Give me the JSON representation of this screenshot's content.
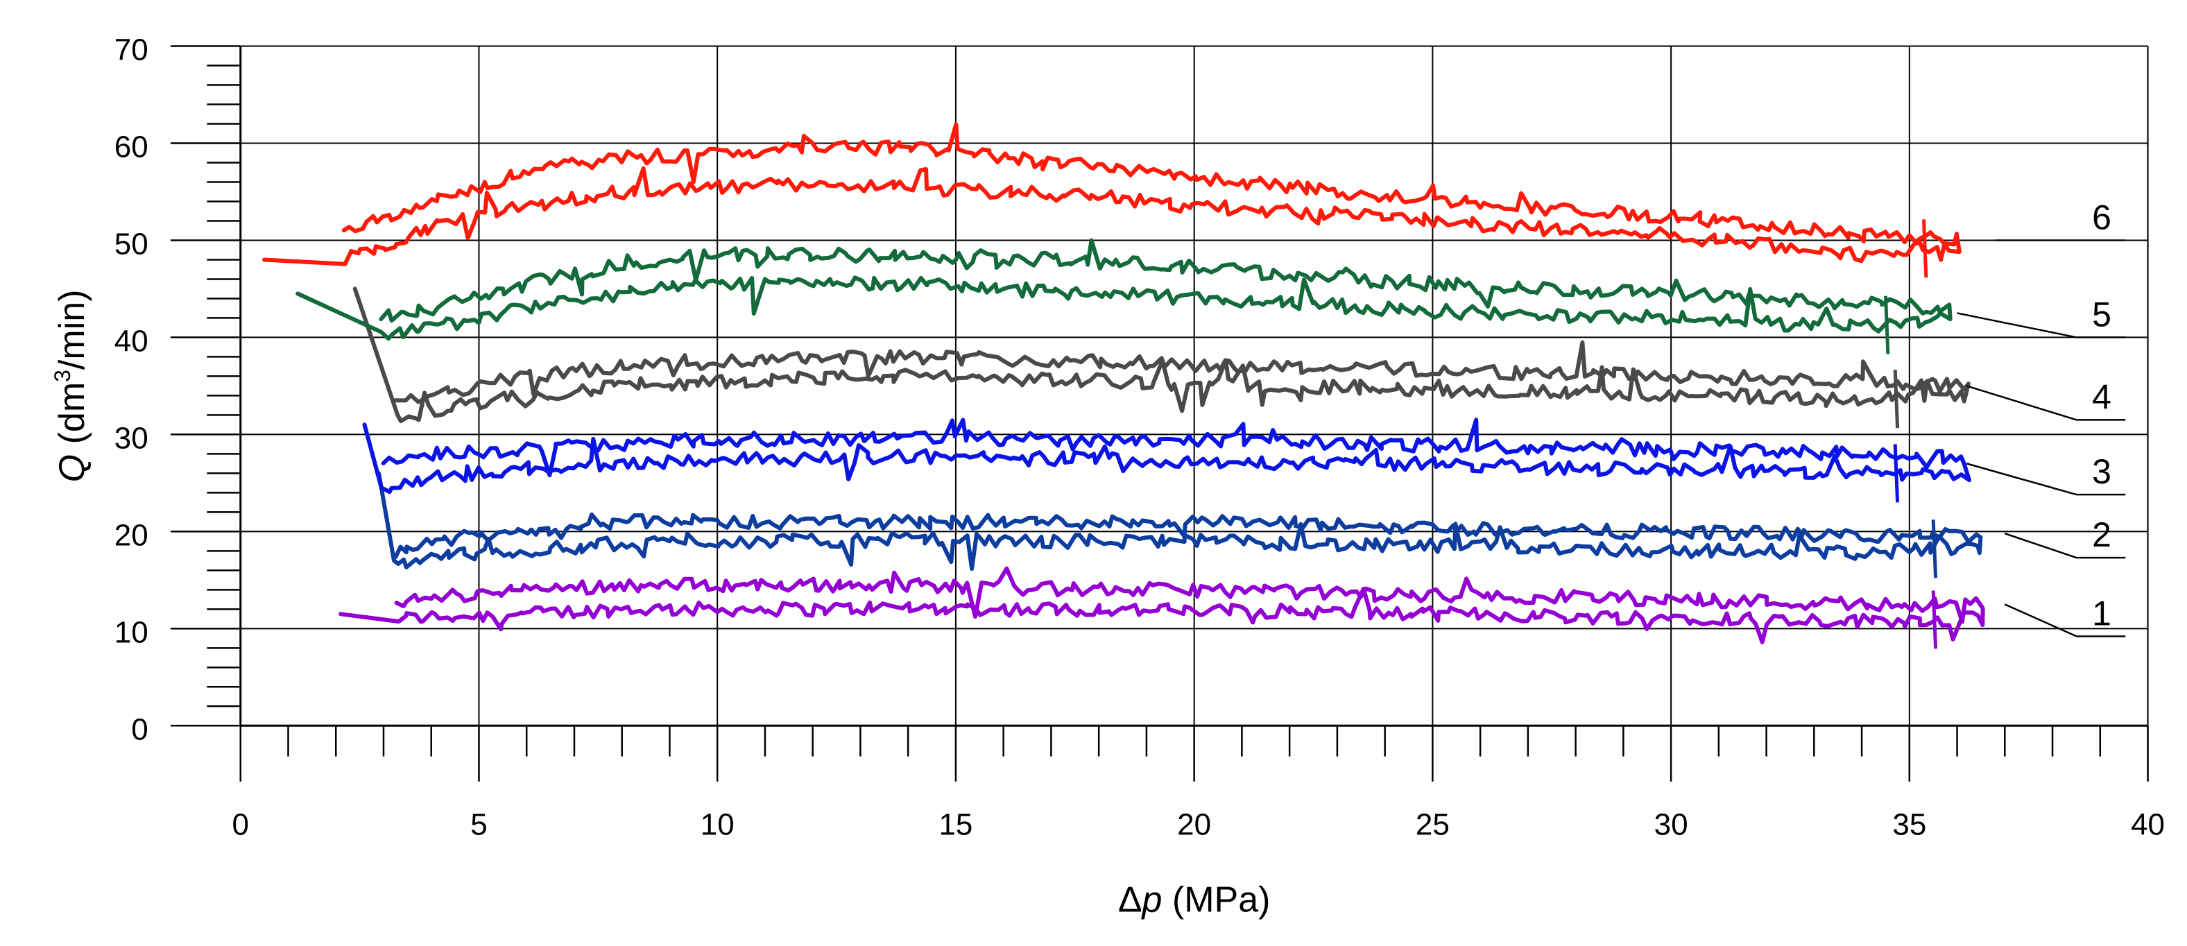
{
  "chart_data": {
    "type": "line",
    "title": "",
    "xlabel": {
      "symbol": "Δ",
      "italic": "p",
      "unit": " (MPa)"
    },
    "ylabel": {
      "italic": "Q",
      "pre": " (dm",
      "sup": "3",
      "post": "/min)"
    },
    "xlim": [
      0,
      40
    ],
    "ylim": [
      0,
      70
    ],
    "x_ticks": [
      0,
      5,
      10,
      15,
      20,
      25,
      30,
      35,
      40
    ],
    "y_ticks": [
      0,
      10,
      20,
      30,
      40,
      50,
      60,
      70
    ],
    "x_tick_labels": [
      "0",
      "5",
      "10",
      "15",
      "20",
      "25",
      "30",
      "35",
      "40"
    ],
    "y_tick_labels": [
      "0",
      "10",
      "20",
      "30",
      "40",
      "50",
      "60",
      "70"
    ],
    "x_minor_step": 1,
    "y_minor_step": 2,
    "grid": true,
    "series": [
      {
        "name": "1",
        "color": "#9400d3",
        "upper": {
          "x": [
            3.3,
            4,
            6,
            8,
            10,
            12,
            14,
            16,
            18,
            20,
            22,
            24,
            26,
            28,
            30,
            32,
            34,
            36.5
          ],
          "y": [
            12.5,
            13.2,
            14,
            14.5,
            14.5,
            14.5,
            14.5,
            14.2,
            14,
            14,
            13.8,
            13.5,
            13.3,
            13.3,
            13,
            12.8,
            12.5,
            12.5
          ]
        },
        "lower": {
          "x": [
            3.3,
            4,
            6,
            8,
            10,
            12,
            14,
            16,
            18,
            20,
            22,
            24,
            26,
            28,
            30,
            32,
            34,
            36.5
          ],
          "y": [
            11,
            11.2,
            11.5,
            12,
            12,
            12,
            12.2,
            12,
            12,
            11.8,
            11.8,
            11.5,
            11.5,
            11.2,
            11.2,
            11,
            10.8,
            11
          ]
        },
        "start": {
          "x": 2.1,
          "y": 11.5
        },
        "label_point": {
          "x": 37,
          "y": 12.5
        }
      },
      {
        "name": "2",
        "color": "#0d3d9e",
        "upper": {
          "x": [
            3.2,
            4,
            6,
            8,
            10,
            12,
            14,
            16,
            18,
            20,
            22,
            24,
            26,
            28,
            30,
            32,
            34,
            36.5
          ],
          "y": [
            18,
            19,
            20,
            21,
            21,
            21,
            21,
            21,
            21,
            21,
            20.8,
            20.5,
            20.3,
            20,
            20,
            19.8,
            19.5,
            19.8
          ]
        },
        "lower": {
          "x": [
            3.2,
            4,
            6,
            8,
            10,
            12,
            14,
            16,
            18,
            20,
            22,
            24,
            26,
            28,
            30,
            32,
            34,
            36.5
          ],
          "y": [
            16.5,
            17.5,
            18,
            18.8,
            19,
            19,
            19.2,
            19,
            19,
            19,
            18.8,
            18.5,
            18.5,
            18.3,
            18,
            18,
            17.8,
            18.5
          ]
        },
        "start": {
          "x": 2.9,
          "y": 26
        },
        "label_point": {
          "x": 37,
          "y": 19.8
        }
      },
      {
        "name": "3",
        "color": "#0a14e6",
        "upper": {
          "x": [
            3,
            4,
            6,
            8,
            10,
            12,
            14,
            16,
            18,
            20,
            22,
            24,
            26,
            28,
            30,
            32,
            34,
            36.2
          ],
          "y": [
            27,
            28,
            28.5,
            29,
            29.5,
            29.5,
            29.8,
            29.5,
            29.5,
            29.5,
            29.3,
            29,
            28.8,
            28.5,
            28.5,
            28.2,
            28,
            27.5
          ]
        },
        "lower": {
          "x": [
            3,
            4,
            6,
            8,
            10,
            12,
            14,
            16,
            18,
            20,
            22,
            24,
            26,
            28,
            30,
            32,
            34,
            36.2
          ],
          "y": [
            24,
            25.5,
            26.5,
            27,
            27.5,
            27.5,
            27.8,
            27.5,
            27.5,
            27.3,
            27,
            27,
            26.8,
            26.5,
            26.5,
            26.2,
            26,
            26
          ]
        },
        "start": {
          "x": 2.6,
          "y": 31
        },
        "label_point": {
          "x": 36.2,
          "y": 27
        }
      },
      {
        "name": "4",
        "color": "#4a4a4a",
        "upper": {
          "x": [
            3.3,
            4,
            6,
            8,
            10,
            12,
            14,
            16,
            18,
            20,
            22,
            24,
            26,
            28,
            30,
            32,
            34,
            36.2
          ],
          "y": [
            33,
            34,
            36,
            37,
            37.5,
            38,
            38,
            37.8,
            37.5,
            37.2,
            37,
            36.8,
            36.5,
            36.2,
            36,
            35.8,
            35.5,
            35
          ]
        },
        "lower": {
          "x": [
            3.3,
            4,
            6,
            8,
            10,
            12,
            14,
            16,
            18,
            20,
            22,
            24,
            26,
            28,
            30,
            32,
            34,
            36.2
          ],
          "y": [
            31.5,
            32.5,
            34,
            35,
            35.5,
            35.8,
            36,
            35.8,
            35.5,
            35.2,
            35,
            34.8,
            34.5,
            34.3,
            34,
            33.8,
            33.5,
            34
          ]
        },
        "start": {
          "x": 2.4,
          "y": 45
        },
        "label_point": {
          "x": 36.2,
          "y": 35
        }
      },
      {
        "name": "5",
        "color": "#136b3c",
        "upper": {
          "x": [
            3,
            4,
            6,
            8,
            10,
            12,
            14,
            16,
            18,
            20,
            22,
            24,
            26,
            28,
            30,
            32,
            34,
            35.8
          ],
          "y": [
            42,
            43,
            45.5,
            47.5,
            48.5,
            48.5,
            48.5,
            48.2,
            47.8,
            47.2,
            46.5,
            45.8,
            45.2,
            44.8,
            44.5,
            44,
            43.5,
            43
          ]
        },
        "lower": {
          "x": [
            3,
            4,
            6,
            8,
            10,
            12,
            14,
            16,
            18,
            20,
            22,
            24,
            26,
            28,
            30,
            32,
            34,
            35.8
          ],
          "y": [
            40,
            41,
            43,
            44.5,
            45.5,
            45.8,
            45.5,
            45,
            44.5,
            44,
            43.5,
            43,
            42.5,
            42.2,
            42,
            41.5,
            41,
            42
          ]
        },
        "start": {
          "x": 1.2,
          "y": 44.5
        },
        "label_point": {
          "x": 36,
          "y": 42.5
        }
      },
      {
        "name": "6",
        "color": "#ff1a0a",
        "upper": {
          "x": [
            2.2,
            3,
            4,
            6,
            8,
            10,
            12,
            14,
            16,
            18,
            20,
            22,
            24,
            26,
            28,
            30,
            32,
            34,
            36
          ],
          "y": [
            51,
            52.5,
            54,
            57,
            58.5,
            59,
            59.5,
            59.5,
            58.5,
            57.5,
            56.5,
            55.5,
            54.5,
            54,
            53,
            52.5,
            51.5,
            50.5,
            50
          ]
        },
        "lower": {
          "x": [
            2.2,
            3,
            4,
            6,
            8,
            10,
            12,
            14,
            16,
            18,
            20,
            22,
            24,
            26,
            28,
            30,
            32,
            34,
            36
          ],
          "y": [
            48,
            49.5,
            51.5,
            53.5,
            55,
            55.5,
            55.8,
            55.5,
            55,
            54.5,
            53.5,
            53,
            52.5,
            51.5,
            51,
            50.5,
            49.5,
            48.5,
            49.5
          ]
        },
        "start": {
          "x": 0.5,
          "y": 48
        },
        "label_point": {
          "x": 36.8,
          "y": 50
        }
      }
    ],
    "annotations": [
      {
        "text": "6",
        "series": "6",
        "q": 50.0
      },
      {
        "text": "5",
        "series": "5",
        "q": 40.0
      },
      {
        "text": "4",
        "series": "4",
        "q": 31.5
      },
      {
        "text": "3",
        "series": "3",
        "q": 23.8
      },
      {
        "text": "2",
        "series": "2",
        "q": 17.3
      },
      {
        "text": "1",
        "series": "1",
        "q": 9.2
      }
    ]
  }
}
